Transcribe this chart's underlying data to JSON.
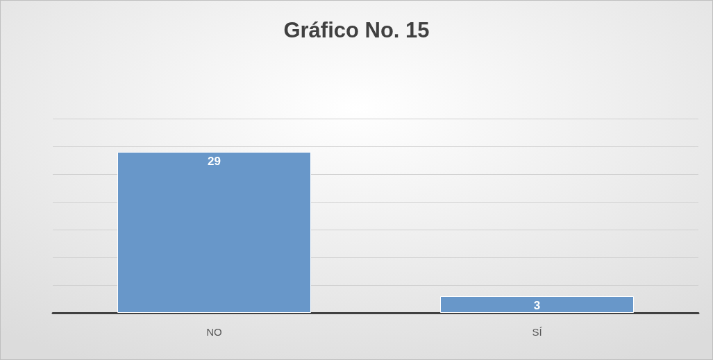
{
  "chart_data": {
    "type": "bar",
    "title": "Gráfico No. 15",
    "categories": [
      "NO",
      "SÍ"
    ],
    "values": [
      29,
      3
    ],
    "color": "#6897c9",
    "ylim": [
      0,
      35
    ],
    "yticks": [
      {
        "value": 0,
        "label": null
      },
      {
        "value": 5,
        "label": null
      },
      {
        "value": 10,
        "label": null
      },
      {
        "value": 15,
        "label": null
      },
      {
        "value": 20,
        "label": null
      },
      {
        "value": 25,
        "label": null
      },
      {
        "value": 30,
        "label": null
      },
      {
        "value": 35,
        "label": null
      }
    ],
    "grid": "y",
    "tick_labels": "x",
    "data_labels": true
  }
}
